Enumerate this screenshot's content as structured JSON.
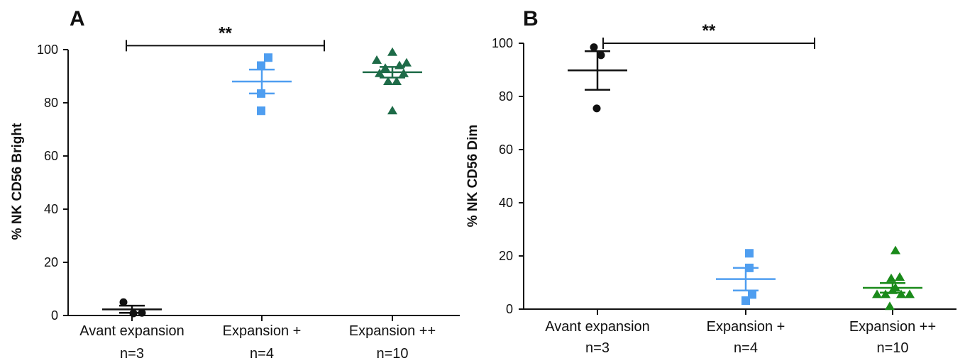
{
  "chart_data": [
    {
      "type": "scatter",
      "panel": "A",
      "ylabel": "% NK CD56 Bright",
      "ylim": [
        0,
        100
      ],
      "yticks": [
        "0",
        "20",
        "40",
        "60",
        "80",
        "100"
      ],
      "categories": [
        "Avant expansion",
        "Expansion +",
        "Expansion ++"
      ],
      "n_labels": [
        "n=3",
        "n=4",
        "n=10"
      ],
      "series": [
        {
          "category": "Avant expansion",
          "marker": "circle",
          "color": "#111111",
          "points": [
            {
              "dx": -0.12,
              "y": 5.0
            },
            {
              "dx": 0.02,
              "y": 0.8
            },
            {
              "dx": 0.14,
              "y": 1.0
            }
          ],
          "mean": 2.3,
          "sem_low": 1.0,
          "sem_high": 3.7
        },
        {
          "category": "Expansion +",
          "marker": "square",
          "color": "#4f9ef0",
          "points": [
            {
              "dx": -0.01,
              "y": 94
            },
            {
              "dx": 0.09,
              "y": 97
            },
            {
              "dx": -0.01,
              "y": 83.5
            },
            {
              "dx": -0.01,
              "y": 77
            }
          ],
          "mean": 88,
          "sem_low": 83.5,
          "sem_high": 92.5
        },
        {
          "category": "Expansion ++",
          "marker": "triangle",
          "color": "#1e6b48",
          "points": [
            {
              "dx": -0.22,
              "y": 96
            },
            {
              "dx": -0.1,
              "y": 93
            },
            {
              "dx": 0.0,
              "y": 99
            },
            {
              "dx": 0.1,
              "y": 94
            },
            {
              "dx": 0.2,
              "y": 95
            },
            {
              "dx": -0.18,
              "y": 91
            },
            {
              "dx": -0.06,
              "y": 88
            },
            {
              "dx": 0.06,
              "y": 88
            },
            {
              "dx": 0.16,
              "y": 91
            },
            {
              "dx": 0.0,
              "y": 77
            }
          ],
          "mean": 91.5,
          "sem_low": 89.5,
          "sem_high": 93.5
        }
      ],
      "significance": {
        "from": "Avant expansion",
        "to": "Expansion +",
        "label": "**",
        "y": 101.5
      }
    },
    {
      "type": "scatter",
      "panel": "B",
      "ylabel": "% NK CD56 Dim",
      "ylim": [
        0,
        100
      ],
      "yticks": [
        "0",
        "20",
        "40",
        "60",
        "80",
        "100"
      ],
      "categories": [
        "Avant expansion",
        "Expansion +",
        "Expansion ++"
      ],
      "n_labels": [
        "n=3",
        "n=4",
        "n=10"
      ],
      "series": [
        {
          "category": "Avant expansion",
          "marker": "circle",
          "color": "#111111",
          "points": [
            {
              "dx": -0.05,
              "y": 98.5
            },
            {
              "dx": 0.05,
              "y": 95.5
            },
            {
              "dx": -0.01,
              "y": 75.5
            }
          ],
          "mean": 89.8,
          "sem_low": 82.5,
          "sem_high": 97
        },
        {
          "category": "Expansion +",
          "marker": "square",
          "color": "#4f9ef0",
          "points": [
            {
              "dx": 0.05,
              "y": 21
            },
            {
              "dx": 0.05,
              "y": 15.5
            },
            {
              "dx": 0.09,
              "y": 5.5
            },
            {
              "dx": 0.0,
              "y": 3.2
            }
          ],
          "mean": 11.3,
          "sem_low": 7,
          "sem_high": 15.5
        },
        {
          "category": "Expansion ++",
          "marker": "triangle",
          "color": "#1a8a1a",
          "points": [
            {
              "dx": 0.04,
              "y": 22
            },
            {
              "dx": -0.02,
              "y": 11.5
            },
            {
              "dx": 0.1,
              "y": 12
            },
            {
              "dx": -0.22,
              "y": 5.5
            },
            {
              "dx": -0.1,
              "y": 5.5
            },
            {
              "dx": 0.0,
              "y": 7
            },
            {
              "dx": 0.12,
              "y": 5.5
            },
            {
              "dx": 0.24,
              "y": 5.5
            },
            {
              "dx": 0.04,
              "y": 8
            },
            {
              "dx": -0.04,
              "y": 1
            }
          ],
          "mean": 8,
          "sem_low": 6.2,
          "sem_high": 9.8
        }
      ],
      "significance": {
        "from": "Avant expansion",
        "to": "Expansion ++",
        "label": "**",
        "y": 100
      }
    }
  ]
}
